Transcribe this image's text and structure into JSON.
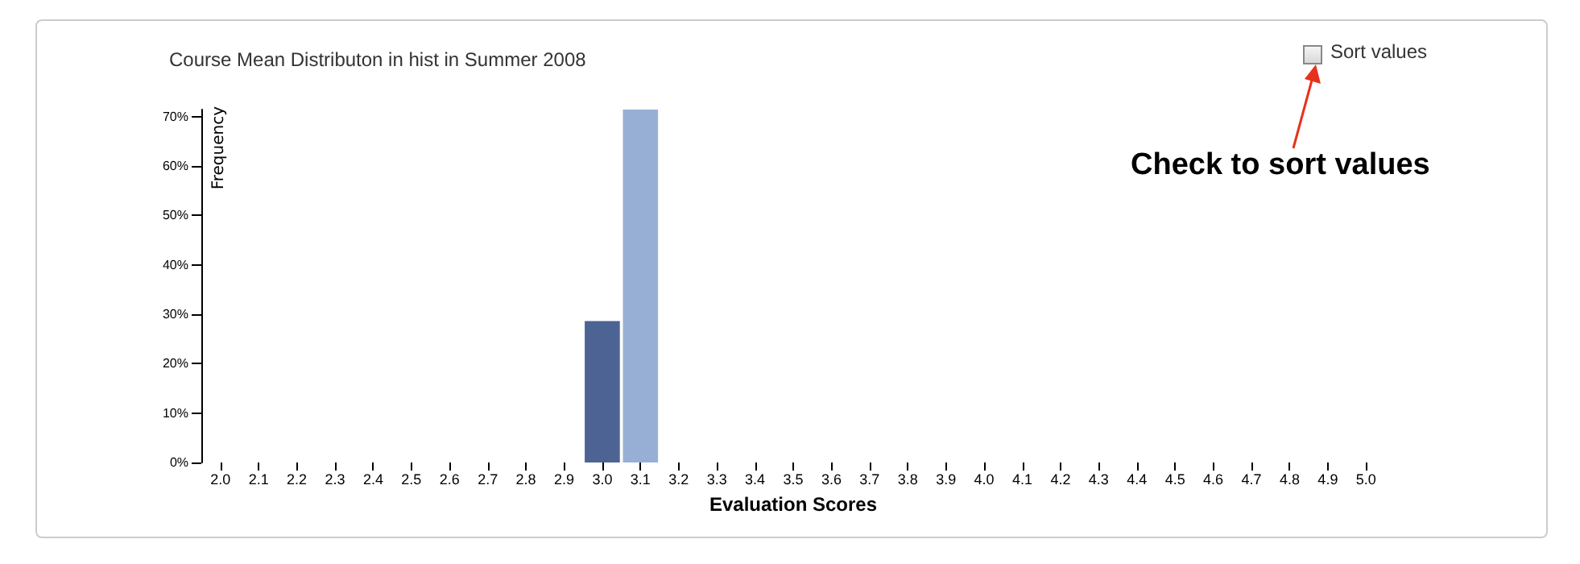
{
  "chart_data": {
    "type": "bar",
    "title": "Course Mean Distributon in hist in Summer 2008",
    "xlabel": "Evaluation Scores",
    "ylabel": "Frequency",
    "categories": [
      "2.0",
      "2.1",
      "2.2",
      "2.3",
      "2.4",
      "2.5",
      "2.6",
      "2.7",
      "2.8",
      "2.9",
      "3.0",
      "3.1",
      "3.2",
      "3.3",
      "3.4",
      "3.5",
      "3.6",
      "3.7",
      "3.8",
      "3.9",
      "4.0",
      "4.1",
      "4.2",
      "4.3",
      "4.4",
      "4.5",
      "4.6",
      "4.7",
      "4.8",
      "4.9",
      "5.0"
    ],
    "values": [
      0,
      0,
      0,
      0,
      0,
      0,
      0,
      0,
      0,
      0,
      28.6,
      71.4,
      0,
      0,
      0,
      0,
      0,
      0,
      0,
      0,
      0,
      0,
      0,
      0,
      0,
      0,
      0,
      0,
      0,
      0,
      0
    ],
    "colors": [
      "#4c6393",
      "#98afd5",
      "#4c6393",
      "#98afd5",
      "#4c6393",
      "#98afd5",
      "#4c6393",
      "#98afd5",
      "#4c6393",
      "#98afd5",
      "#4c6393",
      "#98afd5",
      "#4c6393",
      "#98afd5",
      "#4c6393",
      "#98afd5",
      "#4c6393",
      "#98afd5",
      "#4c6393",
      "#98afd5",
      "#4c6393",
      "#98afd5",
      "#4c6393",
      "#98afd5",
      "#4c6393",
      "#98afd5",
      "#4c6393",
      "#98afd5",
      "#4c6393",
      "#98afd5",
      "#4c6393"
    ],
    "ylim": [
      0,
      71.4
    ],
    "yticks": [
      {
        "value": 0,
        "label": "0%"
      },
      {
        "value": 10,
        "label": "10%"
      },
      {
        "value": 20,
        "label": "20%"
      },
      {
        "value": 30,
        "label": "30%"
      },
      {
        "value": 40,
        "label": "40%"
      },
      {
        "value": 50,
        "label": "50%"
      },
      {
        "value": 60,
        "label": "60%"
      },
      {
        "value": 70,
        "label": "70%"
      }
    ],
    "grid": false,
    "annotations": [
      "Sort values",
      "Check to sort values"
    ]
  }
}
